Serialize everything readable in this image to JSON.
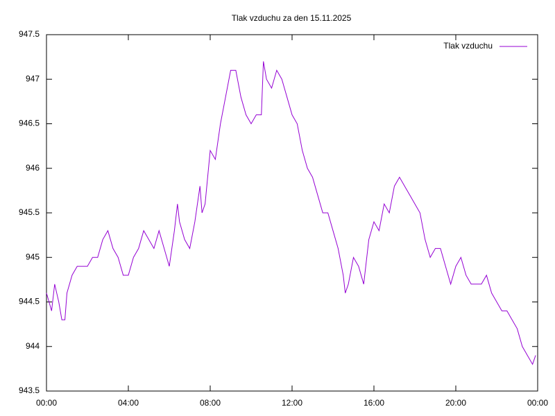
{
  "chart_data": {
    "type": "line",
    "title": "Tlak vzduchu za den 15.11.2025",
    "x": [
      0,
      0.25,
      0.4,
      0.6,
      0.75,
      0.9,
      1,
      1.25,
      1.5,
      1.75,
      2,
      2.25,
      2.5,
      2.75,
      3,
      3.25,
      3.5,
      3.75,
      4,
      4.25,
      4.5,
      4.75,
      5,
      5.25,
      5.5,
      5.75,
      6,
      6.25,
      6.4,
      6.5,
      6.75,
      7,
      7.25,
      7.5,
      7.6,
      7.75,
      8,
      8.25,
      8.5,
      8.75,
      9,
      9.25,
      9.5,
      9.75,
      10,
      10.25,
      10.5,
      10.6,
      10.75,
      11,
      11.25,
      11.5,
      11.75,
      12,
      12.25,
      12.5,
      12.75,
      13,
      13.25,
      13.5,
      13.75,
      14,
      14.25,
      14.5,
      14.6,
      14.75,
      15,
      15.25,
      15.5,
      15.75,
      16,
      16.25,
      16.5,
      16.75,
      17,
      17.25,
      17.5,
      17.75,
      18,
      18.25,
      18.5,
      18.75,
      19,
      19.25,
      19.5,
      19.75,
      20,
      20.25,
      20.5,
      20.75,
      21,
      21.25,
      21.5,
      21.75,
      22,
      22.25,
      22.5,
      22.75,
      23,
      23.25,
      23.5,
      23.75,
      23.9
    ],
    "series": [
      {
        "name": "Tlak vzduchu",
        "color": "#9400d3",
        "values": [
          944.6,
          944.4,
          944.7,
          944.5,
          944.3,
          944.3,
          944.6,
          944.8,
          944.9,
          944.9,
          944.9,
          945.0,
          945.0,
          945.2,
          945.3,
          945.1,
          945.0,
          944.8,
          944.8,
          945.0,
          945.1,
          945.3,
          945.2,
          945.1,
          945.3,
          945.1,
          944.9,
          945.3,
          945.6,
          945.4,
          945.2,
          945.1,
          945.4,
          945.8,
          945.5,
          945.6,
          946.2,
          946.1,
          946.5,
          946.8,
          947.1,
          947.1,
          946.8,
          946.6,
          946.5,
          946.6,
          946.6,
          947.2,
          947.0,
          946.9,
          947.1,
          947.0,
          946.8,
          946.6,
          946.5,
          946.2,
          946.0,
          945.9,
          945.7,
          945.5,
          945.5,
          945.3,
          945.1,
          944.8,
          944.6,
          944.7,
          945.0,
          944.9,
          944.7,
          945.2,
          945.4,
          945.3,
          945.6,
          945.5,
          945.8,
          945.9,
          945.8,
          945.7,
          945.6,
          945.5,
          945.2,
          945.0,
          945.1,
          945.1,
          944.9,
          944.7,
          944.9,
          945.0,
          944.8,
          944.7,
          944.7,
          944.7,
          944.8,
          944.6,
          944.5,
          944.4,
          944.4,
          944.3,
          944.2,
          944.0,
          943.9,
          943.8,
          943.9
        ]
      }
    ],
    "xlim": [
      0,
      24
    ],
    "xticks": [
      {
        "value": 0,
        "label": "00:00"
      },
      {
        "value": 4,
        "label": "04:00"
      },
      {
        "value": 8,
        "label": "08:00"
      },
      {
        "value": 12,
        "label": "12:00"
      },
      {
        "value": 16,
        "label": "16:00"
      },
      {
        "value": 20,
        "label": "20:00"
      },
      {
        "value": 24,
        "label": "00:00"
      }
    ],
    "ylim": [
      943.5,
      947.5
    ],
    "yticks": [
      943.5,
      944,
      944.5,
      945,
      945.5,
      946,
      946.5,
      947,
      947.5
    ],
    "grid": false,
    "legend": "top-right"
  }
}
